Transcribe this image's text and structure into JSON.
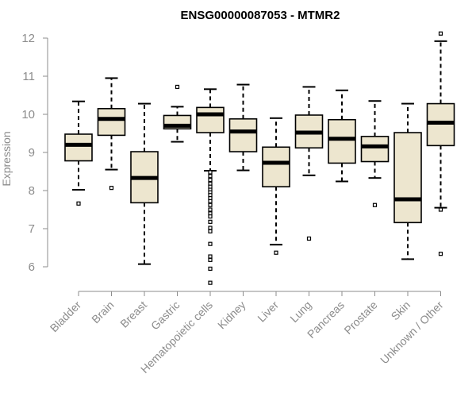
{
  "chart_data": {
    "type": "boxplot",
    "title": "ENSG00000087053 - MTMR2",
    "xlabel": "",
    "ylabel": "Expression",
    "ylim": [
      5.4,
      12.2
    ],
    "yticks": [
      6,
      7,
      8,
      9,
      10,
      11,
      12
    ],
    "grid": false,
    "colors": {
      "box_fill": "#ede6cf",
      "stroke": "#000000",
      "axis_text": "#8c8c8c"
    },
    "categories": [
      "Bladder",
      "Brain",
      "Breast",
      "Gastric",
      "Hematopoietic cells",
      "Kidney",
      "Liver",
      "Lung",
      "Pancreas",
      "Prostate",
      "Skin",
      "Unknown / Other"
    ],
    "series": [
      {
        "category": "Bladder",
        "whisker_low": 8.02,
        "q1": 8.78,
        "median": 9.2,
        "q3": 9.48,
        "whisker_high": 10.34,
        "outliers": [
          7.66
        ]
      },
      {
        "category": "Brain",
        "whisker_low": 8.55,
        "q1": 9.45,
        "median": 9.88,
        "q3": 10.15,
        "whisker_high": 10.95,
        "outliers": [
          8.07
        ]
      },
      {
        "category": "Breast",
        "whisker_low": 6.07,
        "q1": 7.68,
        "median": 8.33,
        "q3": 9.02,
        "whisker_high": 10.28,
        "outliers": []
      },
      {
        "category": "Gastric",
        "whisker_low": 9.28,
        "q1": 9.62,
        "median": 9.7,
        "q3": 9.97,
        "whisker_high": 10.2,
        "outliers": [
          10.72
        ]
      },
      {
        "category": "Hematopoietic cells",
        "whisker_low": 8.52,
        "q1": 9.52,
        "median": 10.0,
        "q3": 10.18,
        "whisker_high": 10.66,
        "outliers": [
          8.48,
          8.38,
          8.28,
          8.18,
          8.1,
          8.02,
          7.95,
          7.88,
          7.8,
          7.72,
          7.62,
          7.5,
          7.4,
          7.32,
          7.18,
          7.02,
          6.93,
          6.6,
          6.27,
          6.18,
          5.95,
          5.58
        ]
      },
      {
        "category": "Kidney",
        "whisker_low": 8.53,
        "q1": 9.02,
        "median": 9.55,
        "q3": 9.88,
        "whisker_high": 10.78,
        "outliers": []
      },
      {
        "category": "Liver",
        "whisker_low": 6.58,
        "q1": 8.1,
        "median": 8.73,
        "q3": 9.14,
        "whisker_high": 9.9,
        "outliers": [
          6.37
        ]
      },
      {
        "category": "Lung",
        "whisker_low": 8.4,
        "q1": 9.12,
        "median": 9.52,
        "q3": 9.98,
        "whisker_high": 10.72,
        "outliers": [
          6.74
        ]
      },
      {
        "category": "Pancreas",
        "whisker_low": 8.24,
        "q1": 8.72,
        "median": 9.36,
        "q3": 9.86,
        "whisker_high": 10.63,
        "outliers": []
      },
      {
        "category": "Prostate",
        "whisker_low": 8.33,
        "q1": 8.76,
        "median": 9.16,
        "q3": 9.42,
        "whisker_high": 10.35,
        "outliers": [
          7.62
        ]
      },
      {
        "category": "Skin",
        "whisker_low": 6.2,
        "q1": 7.16,
        "median": 7.77,
        "q3": 9.52,
        "whisker_high": 10.28,
        "outliers": []
      },
      {
        "category": "Unknown / Other",
        "whisker_low": 7.55,
        "q1": 9.18,
        "median": 9.78,
        "q3": 10.28,
        "whisker_high": 11.92,
        "outliers": [
          12.12,
          7.5,
          6.34
        ]
      }
    ]
  }
}
